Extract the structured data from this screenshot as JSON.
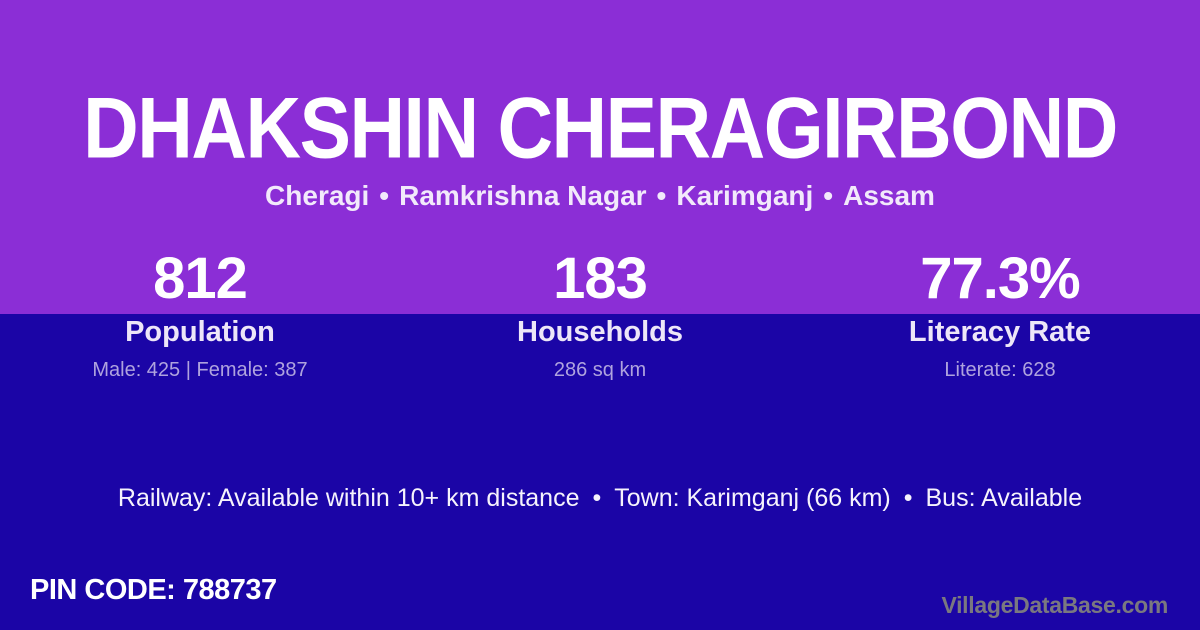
{
  "theme": {
    "top_bg": "#8B2ED6",
    "bottom_bg": "#1B05A6",
    "text_primary": "#FFFFFF",
    "text_soft": "#EDE6F8",
    "text_muted": "#AFA3DE",
    "watermark_color": "#7A7880"
  },
  "header": {
    "title": "DHAKSHIN CHERAGIRBOND",
    "breadcrumb": {
      "separator": "•",
      "parts": [
        "Cheragi",
        "Ramkrishna Nagar",
        "Karimganj",
        "Assam"
      ]
    }
  },
  "stats": [
    {
      "value": "812",
      "label": "Population",
      "sub": "Male: 425 | Female: 387"
    },
    {
      "value": "183",
      "label": "Households",
      "sub": "286 sq km"
    },
    {
      "value": "77.3%",
      "label": "Literacy Rate",
      "sub": "Literate: 628"
    }
  ],
  "transport": {
    "separator": "•",
    "items": [
      "Railway: Available within 10+ km distance",
      "Town: Karimganj (66 km)",
      "Bus: Available"
    ]
  },
  "pin": {
    "label": "PIN CODE:",
    "value": "788737"
  },
  "watermark": "VillageDataBase.com"
}
